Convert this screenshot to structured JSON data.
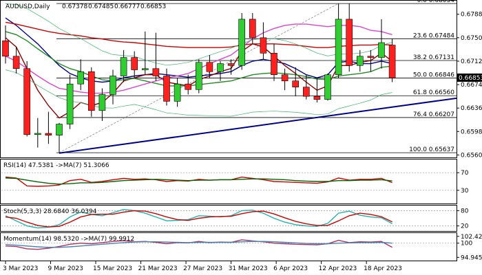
{
  "chart_data": [
    {
      "type": "candlestick",
      "title": "AUDUSD,Daily",
      "ohlc_header": [
        "0.67378",
        "0.67485",
        "0.66777",
        "0.66853"
      ],
      "current_price": 0.66853,
      "current_price_label": "0.66853",
      "ylim": [
        0.6556,
        0.681
      ],
      "yticks": [
        "0.67880",
        "0.67500",
        "0.67120",
        "0.66740",
        "0.66360",
        "0.65980",
        "0.65600"
      ],
      "x_labels": [
        "3 Mar 2023",
        "9 Mar 2023",
        "15 Mar 2023",
        "21 Mar 2023",
        "27 Mar 2023",
        "31 Mar 2023",
        "6 Apr 2023",
        "12 Apr 2023",
        "18 Apr 2023"
      ],
      "fib_levels": [
        {
          "label": "0.0 0.68054",
          "value": 0.68054
        },
        {
          "label": "23.6 0.67484",
          "value": 0.67484
        },
        {
          "label": "38.2 0.67131",
          "value": 0.67131
        },
        {
          "label": "50.0 0.66846",
          "value": 0.66846
        },
        {
          "label": "61.8 0.66560",
          "value": 0.6656
        },
        {
          "label": "76.4 0.66207",
          "value": 0.66207
        },
        {
          "label": "100.0 0.65637",
          "value": 0.65637
        }
      ],
      "candles": [
        {
          "o": 0.6745,
          "h": 0.677,
          "l": 0.6708,
          "c": 0.672
        },
        {
          "o": 0.672,
          "h": 0.6735,
          "l": 0.6692,
          "c": 0.67
        },
        {
          "o": 0.67,
          "h": 0.6712,
          "l": 0.659,
          "c": 0.6593
        },
        {
          "o": 0.6593,
          "h": 0.662,
          "l": 0.6572,
          "c": 0.6595
        },
        {
          "o": 0.6595,
          "h": 0.663,
          "l": 0.6578,
          "c": 0.6592
        },
        {
          "o": 0.6592,
          "h": 0.6612,
          "l": 0.6563,
          "c": 0.661
        },
        {
          "o": 0.661,
          "h": 0.669,
          "l": 0.6602,
          "c": 0.6675
        },
        {
          "o": 0.6675,
          "h": 0.6715,
          "l": 0.6665,
          "c": 0.6695
        },
        {
          "o": 0.6695,
          "h": 0.6702,
          "l": 0.6622,
          "c": 0.6632
        },
        {
          "o": 0.6632,
          "h": 0.6668,
          "l": 0.6615,
          "c": 0.6658
        },
        {
          "o": 0.6658,
          "h": 0.6698,
          "l": 0.6642,
          "c": 0.6688
        },
        {
          "o": 0.6688,
          "h": 0.673,
          "l": 0.6678,
          "c": 0.6718
        },
        {
          "o": 0.6718,
          "h": 0.6728,
          "l": 0.6685,
          "c": 0.6698
        },
        {
          "o": 0.6698,
          "h": 0.676,
          "l": 0.669,
          "c": 0.67
        },
        {
          "o": 0.67,
          "h": 0.6758,
          "l": 0.668,
          "c": 0.6688
        },
        {
          "o": 0.6688,
          "h": 0.67,
          "l": 0.664,
          "c": 0.6647
        },
        {
          "o": 0.6647,
          "h": 0.6685,
          "l": 0.6638,
          "c": 0.6675
        },
        {
          "o": 0.6675,
          "h": 0.669,
          "l": 0.6658,
          "c": 0.6666
        },
        {
          "o": 0.6666,
          "h": 0.6715,
          "l": 0.666,
          "c": 0.671
        },
        {
          "o": 0.671,
          "h": 0.6722,
          "l": 0.6685,
          "c": 0.6695
        },
        {
          "o": 0.6695,
          "h": 0.6712,
          "l": 0.668,
          "c": 0.6708
        },
        {
          "o": 0.6708,
          "h": 0.6715,
          "l": 0.669,
          "c": 0.6705
        },
        {
          "o": 0.6705,
          "h": 0.679,
          "l": 0.6698,
          "c": 0.678
        },
        {
          "o": 0.678,
          "h": 0.679,
          "l": 0.674,
          "c": 0.675
        },
        {
          "o": 0.675,
          "h": 0.6775,
          "l": 0.6715,
          "c": 0.6725
        },
        {
          "o": 0.6725,
          "h": 0.674,
          "l": 0.668,
          "c": 0.669
        },
        {
          "o": 0.669,
          "h": 0.67,
          "l": 0.6665,
          "c": 0.668
        },
        {
          "o": 0.668,
          "h": 0.6702,
          "l": 0.6655,
          "c": 0.667
        },
        {
          "o": 0.667,
          "h": 0.669,
          "l": 0.665,
          "c": 0.6655
        },
        {
          "o": 0.6655,
          "h": 0.6685,
          "l": 0.6645,
          "c": 0.665
        },
        {
          "o": 0.665,
          "h": 0.6692,
          "l": 0.6648,
          "c": 0.669
        },
        {
          "o": 0.669,
          "h": 0.6805,
          "l": 0.6685,
          "c": 0.678
        },
        {
          "o": 0.678,
          "h": 0.6805,
          "l": 0.6695,
          "c": 0.6705
        },
        {
          "o": 0.6705,
          "h": 0.673,
          "l": 0.6695,
          "c": 0.672
        },
        {
          "o": 0.672,
          "h": 0.673,
          "l": 0.6695,
          "c": 0.6718
        },
        {
          "o": 0.6718,
          "h": 0.678,
          "l": 0.67,
          "c": 0.6742
        },
        {
          "o": 0.6738,
          "h": 0.6748,
          "l": 0.6678,
          "c": 0.6685
        }
      ],
      "series": [
        {
          "color": "#00008b",
          "values": [
            0.6782,
            0.677,
            0.6755,
            0.674,
            0.6722,
            0.6705,
            0.6692,
            0.6685,
            0.668,
            0.6678,
            0.668,
            0.6685,
            0.6688,
            0.669,
            0.6692,
            0.669,
            0.6688,
            0.6686,
            0.6688,
            0.669,
            0.6692,
            0.6695,
            0.6705,
            0.6712,
            0.6715,
            0.6712,
            0.6708,
            0.67,
            0.669,
            0.6685,
            0.669,
            0.671,
            0.6712,
            0.6708,
            0.6708,
            0.6712,
            0.6708
          ]
        },
        {
          "color": "#8b0000",
          "values": [
            0.675,
            0.6735,
            0.67,
            0.6665,
            0.664,
            0.662,
            0.663,
            0.6645,
            0.664,
            0.6645,
            0.666,
            0.668,
            0.6685,
            0.669,
            0.669,
            0.6678,
            0.6675,
            0.6672,
            0.6682,
            0.6688,
            0.6695,
            0.67,
            0.6728,
            0.674,
            0.6735,
            0.672,
            0.6705,
            0.6692,
            0.6678,
            0.6665,
            0.6672,
            0.6705,
            0.6705,
            0.671,
            0.6713,
            0.6725,
            0.6712
          ]
        },
        {
          "color": "#228b22",
          "values": [
            0.676,
            0.6755,
            0.6745,
            0.6732,
            0.672,
            0.6708,
            0.67,
            0.6695,
            0.6688,
            0.6682,
            0.668,
            0.6682,
            0.6684,
            0.668,
            0.6676,
            0.6672,
            0.6672,
            0.6672,
            0.6674,
            0.6676,
            0.6678,
            0.668,
            0.6685,
            0.669,
            0.6692,
            0.6693,
            0.6692,
            0.669,
            0.6687,
            0.6683,
            0.6682,
            0.6688,
            0.669,
            0.6692,
            0.6695,
            0.6702,
            0.6704
          ]
        },
        {
          "color": "#cc0000",
          "values": [
            0.6775,
            0.6772,
            0.6768,
            0.6764,
            0.676,
            0.6757,
            0.6755,
            0.6753,
            0.675,
            0.6748,
            0.6745,
            0.6743,
            0.6742,
            0.674,
            0.6738,
            0.6736,
            0.6735,
            0.6734,
            0.6734,
            0.6734,
            0.6734,
            0.6735,
            0.6738,
            0.674,
            0.674,
            0.674,
            0.6739,
            0.6738,
            0.6736,
            0.6734,
            0.6734,
            0.6736,
            0.6737,
            0.6738,
            0.6738,
            0.6739,
            0.6738
          ]
        },
        {
          "color": "#dd44cc",
          "values": [
            0.672,
            0.6712,
            0.67,
            0.6688,
            0.6677,
            0.6668,
            0.6665,
            0.6662,
            0.666,
            0.666,
            0.6662,
            0.6665,
            0.667,
            0.6675,
            0.668,
            0.6685,
            0.6688,
            0.6692,
            0.67,
            0.6708,
            0.6715,
            0.6722,
            0.6735,
            0.6748,
            0.6758,
            0.6765,
            0.677,
            0.6772,
            0.6772,
            0.677,
            0.6768,
            0.677,
            0.677,
            0.6768,
            0.6762,
            0.676,
            0.6755
          ]
        }
      ]
    },
    {
      "type": "line",
      "title": "RSI(14) 47.5381 ->MA(7) 51.3066",
      "ylim": [
        0,
        100
      ],
      "yticks": [
        "70",
        "30"
      ],
      "series": [
        {
          "color": "#cc0000",
          "values": [
            60,
            58,
            40,
            39,
            40,
            42,
            52,
            55,
            48,
            50,
            54,
            57,
            55,
            56,
            54,
            50,
            52,
            51,
            55,
            53,
            54,
            54,
            60,
            57,
            54,
            50,
            49,
            48,
            47,
            46,
            49,
            58,
            53,
            55,
            55,
            57,
            47.5381
          ]
        },
        {
          "color": "#006400",
          "values": [
            58,
            57,
            53,
            49,
            46,
            44,
            45,
            47,
            47,
            48,
            50,
            52,
            53,
            54,
            55,
            54,
            53,
            52,
            53,
            53,
            54,
            54,
            55,
            56,
            56,
            55,
            54,
            52,
            51,
            50,
            50,
            52,
            52,
            53,
            53,
            54,
            51.3066
          ]
        }
      ]
    },
    {
      "type": "line",
      "title": "Stoch(5,3,3) 28.6840 36.0394",
      "ylim": [
        0,
        100
      ],
      "yticks": [
        "80",
        "20"
      ],
      "series": [
        {
          "color": "#20b2aa",
          "values": [
            60,
            40,
            20,
            12,
            15,
            25,
            55,
            75,
            65,
            60,
            72,
            85,
            80,
            70,
            55,
            40,
            42,
            45,
            60,
            58,
            55,
            60,
            80,
            82,
            70,
            50,
            35,
            25,
            20,
            18,
            30,
            70,
            78,
            62,
            55,
            52,
            28.684
          ]
        },
        {
          "color": "#cc0000",
          "values": [
            55,
            50,
            35,
            22,
            16,
            18,
            35,
            55,
            65,
            66,
            66,
            74,
            80,
            78,
            68,
            55,
            45,
            42,
            50,
            55,
            57,
            58,
            68,
            76,
            78,
            67,
            52,
            38,
            28,
            22,
            22,
            40,
            60,
            70,
            65,
            56,
            36.0394
          ]
        }
      ]
    },
    {
      "type": "line",
      "title": "Momentum(14) 98.5320 ->MA(7) 99.9912",
      "ylim": [
        93.8,
        103.6
      ],
      "yticks": [
        "102.4268",
        "100",
        "94.9452"
      ],
      "series": [
        {
          "color": "#b03060",
          "values": [
            99.0,
            98.8,
            98.0,
            97.8,
            98.2,
            98.8,
            99.6,
            100.0,
            99.8,
            100.2,
            100.6,
            100.9,
            100.5,
            100.6,
            100.3,
            99.8,
            100.2,
            100.1,
            100.6,
            100.2,
            100.4,
            100.3,
            101.2,
            100.8,
            100.5,
            100.0,
            99.8,
            99.6,
            99.5,
            99.4,
            99.8,
            101.0,
            100.2,
            100.5,
            100.4,
            100.6,
            98.532
          ]
        },
        {
          "color": "#4682b4",
          "values": [
            99.5,
            99.3,
            99.0,
            98.7,
            98.5,
            98.5,
            98.7,
            99.0,
            99.3,
            99.6,
            99.9,
            100.2,
            100.4,
            100.5,
            100.5,
            100.4,
            100.3,
            100.2,
            100.3,
            100.3,
            100.3,
            100.3,
            100.5,
            100.6,
            100.6,
            100.5,
            100.3,
            100.1,
            99.9,
            99.8,
            99.8,
            100.0,
            100.1,
            100.2,
            100.2,
            100.3,
            99.9912
          ]
        }
      ]
    }
  ]
}
